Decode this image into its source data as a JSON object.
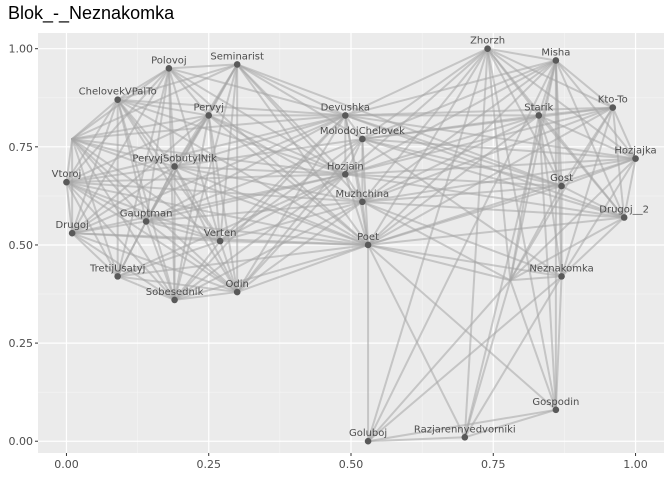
{
  "chart_data": {
    "type": "network",
    "title": "Blok_-_Neznakomka",
    "xlim": [
      -0.05,
      1.05
    ],
    "ylim": [
      -0.03,
      1.04
    ],
    "x_ticks": [
      0.0,
      0.25,
      0.5,
      0.75,
      1.0
    ],
    "x_tick_labels": [
      "0.00",
      "0.25",
      "0.50",
      "0.75",
      "1.00"
    ],
    "y_ticks": [
      0.0,
      0.25,
      0.5,
      0.75,
      1.0
    ],
    "y_tick_labels": [
      "0.00",
      "0.25",
      "0.50",
      "0.75",
      "1.00"
    ],
    "grid": true,
    "nodes": [
      {
        "name": "Polovoj",
        "x": 0.18,
        "y": 0.95
      },
      {
        "name": "Seminarist",
        "x": 0.3,
        "y": 0.96
      },
      {
        "name": "ChelovekVPalTo",
        "x": 0.09,
        "y": 0.87
      },
      {
        "name": "Pervyj",
        "x": 0.25,
        "y": 0.83
      },
      {
        "name": "PervyjSobutylNik",
        "x": 0.19,
        "y": 0.7
      },
      {
        "name": "Vtoroj",
        "x": 0.0,
        "y": 0.66
      },
      {
        "name": "Gauptman",
        "x": 0.14,
        "y": 0.56
      },
      {
        "name": "Drugoj",
        "x": 0.01,
        "y": 0.53
      },
      {
        "name": "Verten",
        "x": 0.27,
        "y": 0.51
      },
      {
        "name": "TretijUsatyj",
        "x": 0.09,
        "y": 0.42
      },
      {
        "name": "Sobesednik",
        "x": 0.19,
        "y": 0.36
      },
      {
        "name": "Odin",
        "x": 0.3,
        "y": 0.38
      },
      {
        "name": "Devushka",
        "x": 0.49,
        "y": 0.83
      },
      {
        "name": "MolodojChelovek",
        "x": 0.52,
        "y": 0.77
      },
      {
        "name": "Hozjain",
        "x": 0.49,
        "y": 0.68
      },
      {
        "name": "Muzhchina",
        "x": 0.52,
        "y": 0.61
      },
      {
        "name": "Poet",
        "x": 0.53,
        "y": 0.5
      },
      {
        "name": "Zhorzh",
        "x": 0.74,
        "y": 1.0
      },
      {
        "name": "Misha",
        "x": 0.86,
        "y": 0.97
      },
      {
        "name": "Starik",
        "x": 0.83,
        "y": 0.83
      },
      {
        "name": "Kto-To",
        "x": 0.96,
        "y": 0.85
      },
      {
        "name": "Hozjajka",
        "x": 1.0,
        "y": 0.72
      },
      {
        "name": "Gost",
        "x": 0.87,
        "y": 0.65
      },
      {
        "name": "Drugoj__2",
        "x": 0.98,
        "y": 0.57
      },
      {
        "name": "Neznakomka",
        "x": 0.87,
        "y": 0.42
      },
      {
        "name": "Gospodin",
        "x": 0.86,
        "y": 0.08
      },
      {
        "name": "Goluboj",
        "x": 0.53,
        "y": 0.0
      },
      {
        "name": "Razjarennyedvorniki",
        "x": 0.7,
        "y": 0.01
      }
    ],
    "hidden_nodes": [
      {
        "x": 0.01,
        "y": 0.77
      },
      {
        "x": 0.78,
        "y": 0.41
      }
    ],
    "edges": [
      [
        "Polovoj",
        "Seminarist"
      ],
      [
        "Polovoj",
        "ChelovekVPalTo"
      ],
      [
        "Polovoj",
        "Pervyj"
      ],
      [
        "Polovoj",
        "PervyjSobutylNik"
      ],
      [
        "Polovoj",
        "Vtoroj"
      ],
      [
        "Polovoj",
        "Gauptman"
      ],
      [
        "Polovoj",
        "Drugoj"
      ],
      [
        "Polovoj",
        "Verten"
      ],
      [
        "Polovoj",
        "TretijUsatyj"
      ],
      [
        "Polovoj",
        "Sobesednik"
      ],
      [
        "Polovoj",
        "Devushka"
      ],
      [
        "Polovoj",
        "Hozjain"
      ],
      [
        "Polovoj",
        "Poet"
      ],
      [
        "Seminarist",
        "ChelovekVPalTo"
      ],
      [
        "Seminarist",
        "Pervyj"
      ],
      [
        "Seminarist",
        "PervyjSobutylNik"
      ],
      [
        "Seminarist",
        "Gauptman"
      ],
      [
        "Seminarist",
        "Verten"
      ],
      [
        "Seminarist",
        "Odin"
      ],
      [
        "Seminarist",
        "Devushka"
      ],
      [
        "Seminarist",
        "MolodojChelovek"
      ],
      [
        "Seminarist",
        "Hozjain"
      ],
      [
        "Seminarist",
        "Muzhchina"
      ],
      [
        "Seminarist",
        "Poet"
      ],
      [
        "Seminarist",
        "Gost"
      ],
      [
        "Seminarist",
        "Sobesednik"
      ],
      [
        "ChelovekVPalTo",
        "Pervyj"
      ],
      [
        "ChelovekVPalTo",
        "PervyjSobutylNik"
      ],
      [
        "ChelovekVPalTo",
        "Vtoroj"
      ],
      [
        "ChelovekVPalTo",
        "Gauptman"
      ],
      [
        "ChelovekVPalTo",
        "Drugoj"
      ],
      [
        "ChelovekVPalTo",
        "TretijUsatyj"
      ],
      [
        "ChelovekVPalTo",
        "Sobesednik"
      ],
      [
        "ChelovekVPalTo",
        "Odin"
      ],
      [
        "ChelovekVPalTo",
        "Verten"
      ],
      [
        "ChelovekVPalTo",
        "Devushka"
      ],
      [
        "ChelovekVPalTo",
        "Hozjain"
      ],
      [
        "ChelovekVPalTo",
        "Poet"
      ],
      [
        "Pervyj",
        "PervyjSobutylNik"
      ],
      [
        "Pervyj",
        "Vtoroj"
      ],
      [
        "Pervyj",
        "Gauptman"
      ],
      [
        "Pervyj",
        "Drugoj"
      ],
      [
        "Pervyj",
        "Verten"
      ],
      [
        "Pervyj",
        "Sobesednik"
      ],
      [
        "Pervyj",
        "Odin"
      ],
      [
        "Pervyj",
        "Devushka"
      ],
      [
        "Pervyj",
        "Muzhchina"
      ],
      [
        "Pervyj",
        "Poet"
      ],
      [
        "Pervyj",
        "Hozjain"
      ],
      [
        "PervyjSobutylNik",
        "Vtoroj"
      ],
      [
        "PervyjSobutylNik",
        "Gauptman"
      ],
      [
        "PervyjSobutylNik",
        "Drugoj"
      ],
      [
        "PervyjSobutylNik",
        "Verten"
      ],
      [
        "PervyjSobutylNik",
        "TretijUsatyj"
      ],
      [
        "PervyjSobutylNik",
        "Sobesednik"
      ],
      [
        "PervyjSobutylNik",
        "Odin"
      ],
      [
        "PervyjSobutylNik",
        "Devushka"
      ],
      [
        "PervyjSobutylNik",
        "Hozjain"
      ],
      [
        "PervyjSobutylNik",
        "Poet"
      ],
      [
        "PervyjSobutylNik",
        "MolodojChelovek"
      ],
      [
        "PervyjSobutylNik",
        "Muzhchina"
      ],
      [
        "Vtoroj",
        "Gauptman"
      ],
      [
        "Vtoroj",
        "Drugoj"
      ],
      [
        "Vtoroj",
        "TretijUsatyj"
      ],
      [
        "Vtoroj",
        "Sobesednik"
      ],
      [
        "Vtoroj",
        "Verten"
      ],
      [
        "Vtoroj",
        "Odin"
      ],
      [
        "Vtoroj",
        "Devushka"
      ],
      [
        "Vtoroj",
        "Hozjain"
      ],
      [
        "Vtoroj",
        "Poet"
      ],
      [
        "Vtoroj",
        "Muzhchina"
      ],
      [
        "Gauptman",
        "Drugoj"
      ],
      [
        "Gauptman",
        "Verten"
      ],
      [
        "Gauptman",
        "TretijUsatyj"
      ],
      [
        "Gauptman",
        "Sobesednik"
      ],
      [
        "Gauptman",
        "Odin"
      ],
      [
        "Gauptman",
        "Devushka"
      ],
      [
        "Gauptman",
        "Hozjain"
      ],
      [
        "Gauptman",
        "Poet"
      ],
      [
        "Gauptman",
        "Muzhchina"
      ],
      [
        "Gauptman",
        "MolodojChelovek"
      ],
      [
        "Drugoj",
        "Verten"
      ],
      [
        "Drugoj",
        "TretijUsatyj"
      ],
      [
        "Drugoj",
        "Sobesednik"
      ],
      [
        "Drugoj",
        "Odin"
      ],
      [
        "Drugoj",
        "Poet"
      ],
      [
        "Drugoj",
        "Hozjain"
      ],
      [
        "Drugoj",
        "Devushka"
      ],
      [
        "Verten",
        "TretijUsatyj"
      ],
      [
        "Verten",
        "Sobesednik"
      ],
      [
        "Verten",
        "Odin"
      ],
      [
        "Verten",
        "Devushka"
      ],
      [
        "Verten",
        "Hozjain"
      ],
      [
        "Verten",
        "Muzhchina"
      ],
      [
        "Verten",
        "Poet"
      ],
      [
        "Verten",
        "MolodojChelovek"
      ],
      [
        "TretijUsatyj",
        "Sobesednik"
      ],
      [
        "TretijUsatyj",
        "Odin"
      ],
      [
        "TretijUsatyj",
        "Poet"
      ],
      [
        "TretijUsatyj",
        "Hozjain"
      ],
      [
        "Sobesednik",
        "Odin"
      ],
      [
        "Sobesednik",
        "Poet"
      ],
      [
        "Sobesednik",
        "Hozjain"
      ],
      [
        "Sobesednik",
        "Muzhchina"
      ],
      [
        "Sobesednik",
        "Devushka"
      ],
      [
        "Odin",
        "Poet"
      ],
      [
        "Odin",
        "Hozjain"
      ],
      [
        "Odin",
        "Devushka"
      ],
      [
        "Odin",
        "Muzhchina"
      ],
      [
        "Odin",
        "MolodojChelovek"
      ],
      [
        "Devushka",
        "MolodojChelovek"
      ],
      [
        "Devushka",
        "Hozjain"
      ],
      [
        "Devushka",
        "Muzhchina"
      ],
      [
        "Devushka",
        "Poet"
      ],
      [
        "Devushka",
        "Zhorzh"
      ],
      [
        "Devushka",
        "Misha"
      ],
      [
        "Devushka",
        "Starik"
      ],
      [
        "Devushka",
        "Kto-To"
      ],
      [
        "Devushka",
        "Hozjajka"
      ],
      [
        "Devushka",
        "Gost"
      ],
      [
        "Devushka",
        "Drugoj__2"
      ],
      [
        "MolodojChelovek",
        "Hozjain"
      ],
      [
        "MolodojChelovek",
        "Muzhchina"
      ],
      [
        "MolodojChelovek",
        "Poet"
      ],
      [
        "MolodojChelovek",
        "Zhorzh"
      ],
      [
        "MolodojChelovek",
        "Misha"
      ],
      [
        "MolodojChelovek",
        "Starik"
      ],
      [
        "MolodojChelovek",
        "Kto-To"
      ],
      [
        "MolodojChelovek",
        "Hozjajka"
      ],
      [
        "MolodojChelovek",
        "Gost"
      ],
      [
        "MolodojChelovek",
        "Drugoj__2"
      ],
      [
        "MolodojChelovek",
        "Neznakomka"
      ],
      [
        "Hozjain",
        "Muzhchina"
      ],
      [
        "Hozjain",
        "Poet"
      ],
      [
        "Hozjain",
        "Zhorzh"
      ],
      [
        "Hozjain",
        "Misha"
      ],
      [
        "Hozjain",
        "Starik"
      ],
      [
        "Hozjain",
        "Kto-To"
      ],
      [
        "Hozjain",
        "Hozjajka"
      ],
      [
        "Hozjain",
        "Gost"
      ],
      [
        "Hozjain",
        "Drugoj__2"
      ],
      [
        "Muzhchina",
        "Poet"
      ],
      [
        "Muzhchina",
        "Zhorzh"
      ],
      [
        "Muzhchina",
        "Misha"
      ],
      [
        "Muzhchina",
        "Starik"
      ],
      [
        "Muzhchina",
        "Kto-To"
      ],
      [
        "Muzhchina",
        "Hozjajka"
      ],
      [
        "Muzhchina",
        "Gost"
      ],
      [
        "Muzhchina",
        "Drugoj__2"
      ],
      [
        "Muzhchina",
        "Neznakomka"
      ],
      [
        "Poet",
        "Zhorzh"
      ],
      [
        "Poet",
        "Misha"
      ],
      [
        "Poet",
        "Starik"
      ],
      [
        "Poet",
        "Kto-To"
      ],
      [
        "Poet",
        "Hozjajka"
      ],
      [
        "Poet",
        "Gost"
      ],
      [
        "Poet",
        "Drugoj__2"
      ],
      [
        "Poet",
        "Neznakomka"
      ],
      [
        "Poet",
        "Goluboj"
      ],
      [
        "Poet",
        "Razjarennyedvorniki"
      ],
      [
        "Poet",
        "Gospodin"
      ],
      [
        "Zhorzh",
        "Misha"
      ],
      [
        "Zhorzh",
        "Starik"
      ],
      [
        "Zhorzh",
        "Kto-To"
      ],
      [
        "Zhorzh",
        "Hozjajka"
      ],
      [
        "Zhorzh",
        "Gost"
      ],
      [
        "Zhorzh",
        "Drugoj__2"
      ],
      [
        "Misha",
        "Starik"
      ],
      [
        "Misha",
        "Kto-To"
      ],
      [
        "Misha",
        "Hozjajka"
      ],
      [
        "Misha",
        "Gost"
      ],
      [
        "Misha",
        "Drugoj__2"
      ],
      [
        "Misha",
        "Neznakomka"
      ],
      [
        "Starik",
        "Kto-To"
      ],
      [
        "Starik",
        "Hozjajka"
      ],
      [
        "Starik",
        "Gost"
      ],
      [
        "Starik",
        "Drugoj__2"
      ],
      [
        "Starik",
        "Neznakomka"
      ],
      [
        "Kto-To",
        "Hozjajka"
      ],
      [
        "Kto-To",
        "Gost"
      ],
      [
        "Kto-To",
        "Drugoj__2"
      ],
      [
        "Kto-To",
        "Neznakomka"
      ],
      [
        "Hozjajka",
        "Gost"
      ],
      [
        "Hozjajka",
        "Drugoj__2"
      ],
      [
        "Hozjajka",
        "Neznakomka"
      ],
      [
        "Gost",
        "Drugoj__2"
      ],
      [
        "Gost",
        "Neznakomka"
      ],
      [
        "Drugoj__2",
        "Neznakomka"
      ],
      [
        "Neznakomka",
        "Gospodin"
      ],
      [
        "Neznakomka",
        "Goluboj"
      ],
      [
        "Neznakomka",
        "Razjarennyedvorniki"
      ],
      [
        "Gospodin",
        "Goluboj"
      ],
      [
        "Gospodin",
        "Razjarennyedvorniki"
      ],
      [
        "Goluboj",
        "Razjarennyedvorniki"
      ],
      [
        "Gospodin",
        "Misha"
      ],
      [
        "Gospodin",
        "Zhorzh"
      ],
      [
        "Gospodin",
        "Starik"
      ],
      [
        "Razjarennyedvorniki",
        "Misha"
      ],
      [
        "Razjarennyedvorniki",
        "Zhorzh"
      ],
      [
        "Goluboj",
        "Zhorzh"
      ],
      [
        "Goluboj",
        "Misha"
      ]
    ],
    "hidden_edges": [
      [
        0,
        "Polovoj"
      ],
      [
        0,
        "Seminarist"
      ],
      [
        0,
        "ChelovekVPalTo"
      ],
      [
        0,
        "Pervyj"
      ],
      [
        0,
        "PervyjSobutylNik"
      ],
      [
        0,
        "Vtoroj"
      ],
      [
        0,
        "Gauptman"
      ],
      [
        0,
        "Drugoj"
      ],
      [
        0,
        "Verten"
      ],
      [
        0,
        "TretijUsatyj"
      ],
      [
        0,
        "Sobesednik"
      ],
      [
        0,
        "Odin"
      ],
      [
        0,
        "Devushka"
      ],
      [
        0,
        "Hozjain"
      ],
      [
        0,
        "Poet"
      ],
      [
        1,
        "Zhorzh"
      ],
      [
        1,
        "Misha"
      ],
      [
        1,
        "Starik"
      ],
      [
        1,
        "Kto-To"
      ],
      [
        1,
        "Hozjajka"
      ],
      [
        1,
        "Gost"
      ],
      [
        1,
        "Drugoj__2"
      ],
      [
        1,
        "Neznakomka"
      ],
      [
        1,
        "Poet"
      ],
      [
        1,
        "Gospodin"
      ],
      [
        1,
        "Goluboj"
      ],
      [
        1,
        "Razjarennyedvorniki"
      ],
      [
        1,
        "Muzhchina"
      ]
    ],
    "node_color": "#595959",
    "edge_color": "#a6a6a6"
  }
}
